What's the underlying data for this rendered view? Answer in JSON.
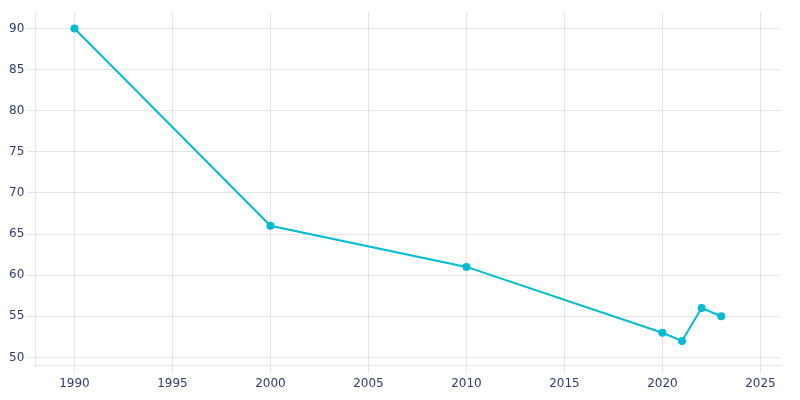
{
  "chart_data": {
    "type": "line",
    "x": [
      1990,
      2000,
      2010,
      2020,
      2021,
      2022,
      2023
    ],
    "values": [
      90,
      66,
      61,
      53,
      52,
      56,
      55
    ],
    "color": "#00bcd4",
    "marker": "circle",
    "xlim": [
      1988,
      2026
    ],
    "ylim": [
      49,
      92
    ],
    "xticks": [
      1990,
      1995,
      2000,
      2005,
      2010,
      2015,
      2020,
      2025
    ],
    "yticks": [
      50,
      55,
      60,
      65,
      70,
      75,
      80,
      85,
      90
    ],
    "grid": true
  }
}
